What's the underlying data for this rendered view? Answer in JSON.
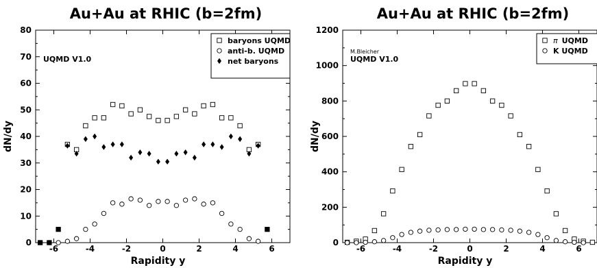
{
  "chart_data": [
    {
      "type": "scatter",
      "title": "Au+Au at RHIC (b=2fm)",
      "xlabel": "Rapidity y",
      "ylabel": "dN/dy",
      "xlim": [
        -7,
        7
      ],
      "ylim": [
        0,
        80
      ],
      "xticks": [
        -6,
        -4,
        -2,
        0,
        2,
        4,
        6
      ],
      "yticks": [
        0,
        10,
        20,
        30,
        40,
        50,
        60,
        70,
        80
      ],
      "annotations": [
        "UQMD V1.0"
      ],
      "legend_position": "top-right",
      "series": [
        {
          "name": "baryons UQMD",
          "marker": "square-open",
          "x": [
            -6.75,
            -6.25,
            -5.75,
            -5.25,
            -4.75,
            -4.25,
            -3.75,
            -3.25,
            -2.75,
            -2.25,
            -1.75,
            -1.25,
            -0.75,
            -0.25,
            0.25,
            0.75,
            1.25,
            1.75,
            2.25,
            2.75,
            3.25,
            3.75,
            4.25,
            4.75,
            5.25,
            5.75
          ],
          "y": [
            0,
            0,
            5,
            37,
            35,
            44,
            47,
            47,
            52,
            51.5,
            48.5,
            50,
            47.5,
            46,
            46,
            47.5,
            50,
            48.5,
            51.5,
            52,
            47,
            47,
            44,
            35,
            37,
            5
          ]
        },
        {
          "name": "anti-b. UQMD",
          "marker": "circle-open",
          "x": [
            -6.75,
            -6.25,
            -5.75,
            -5.25,
            -4.75,
            -4.25,
            -3.75,
            -3.25,
            -2.75,
            -2.25,
            -1.75,
            -1.25,
            -0.75,
            -0.25,
            0.25,
            0.75,
            1.25,
            1.75,
            2.25,
            2.75,
            3.25,
            3.75,
            4.25,
            4.75,
            5.25
          ],
          "y": [
            0,
            0,
            0,
            0.5,
            1.5,
            5,
            7,
            11,
            15,
            14.5,
            16.5,
            16,
            14,
            15.5,
            15.5,
            14,
            16,
            16.5,
            14.5,
            15,
            11,
            7,
            5,
            1.5,
            0.5
          ]
        },
        {
          "name": "net baryons",
          "marker": "diamond-filled",
          "x": [
            -6.75,
            -6.25,
            -5.75,
            -5.25,
            -4.75,
            -4.25,
            -3.75,
            -3.25,
            -2.75,
            -2.25,
            -1.75,
            -1.25,
            -0.75,
            -0.25,
            0.25,
            0.75,
            1.25,
            1.75,
            2.25,
            2.75,
            3.25,
            3.75,
            4.25,
            4.75,
            5.25,
            5.75
          ],
          "y": [
            0,
            0,
            5,
            36.5,
            33.5,
            39,
            40,
            36,
            37,
            37,
            32,
            34,
            33.5,
            30.5,
            30.5,
            33.5,
            34,
            32,
            37,
            37,
            36,
            40,
            39,
            33.5,
            36.5,
            5
          ]
        }
      ]
    },
    {
      "type": "scatter",
      "title": "Au+Au at RHIC (b=2fm)",
      "xlabel": "Rapidity y",
      "ylabel": "dN/dy",
      "xlim": [
        -7,
        7
      ],
      "ylim": [
        0,
        1200
      ],
      "xticks": [
        -6,
        -4,
        -2,
        0,
        2,
        4,
        6
      ],
      "yticks": [
        0,
        200,
        400,
        600,
        800,
        1000,
        1200
      ],
      "annotations": [
        "M.Bleicher",
        "UQMD V1.0"
      ],
      "legend_position": "top-right",
      "series": [
        {
          "name_symbol": "π",
          "name": "UQMD",
          "marker": "square-open",
          "x": [
            -6.75,
            -6.25,
            -5.75,
            -5.25,
            -4.75,
            -4.25,
            -3.75,
            -3.25,
            -2.75,
            -2.25,
            -1.75,
            -1.25,
            -0.75,
            -0.25,
            0.25,
            0.75,
            1.25,
            1.75,
            2.25,
            2.75,
            3.25,
            3.75,
            4.25,
            4.75,
            5.25,
            5.75,
            6.25,
            6.75
          ],
          "y": [
            2,
            8,
            20,
            68,
            163,
            292,
            413,
            543,
            610,
            716,
            776,
            800,
            858,
            898,
            898,
            858,
            800,
            776,
            716,
            610,
            543,
            413,
            292,
            163,
            68,
            20,
            8,
            2
          ]
        },
        {
          "name": "K UQMD",
          "marker": "circle-open",
          "x": [
            -6.75,
            -6.25,
            -5.75,
            -5.25,
            -4.75,
            -4.25,
            -3.75,
            -3.25,
            -2.75,
            -2.25,
            -1.75,
            -1.25,
            -0.75,
            -0.25,
            0.25,
            0.75,
            1.25,
            1.75,
            2.25,
            2.75,
            3.25,
            3.75,
            4.25,
            4.75,
            5.25,
            5.75,
            6.25
          ],
          "y": [
            0,
            0,
            2,
            5,
            12,
            28,
            46,
            58,
            65,
            70,
            72,
            74,
            74,
            76,
            76,
            74,
            74,
            72,
            70,
            65,
            58,
            46,
            28,
            12,
            5,
            2,
            0
          ]
        }
      ]
    }
  ]
}
